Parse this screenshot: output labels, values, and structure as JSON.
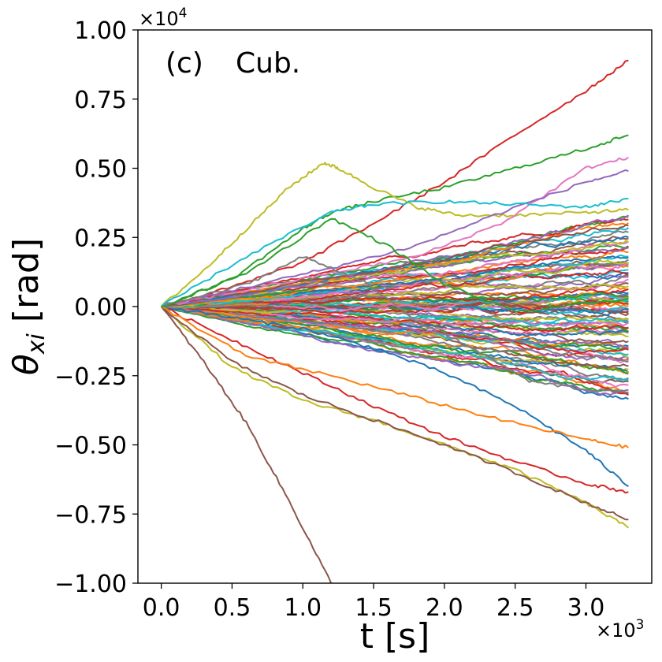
{
  "chart_data": {
    "type": "line",
    "panel_label": "(c)",
    "panel_title": "Cub.",
    "xlabel": "t [s]",
    "ylabel_symbol": "θ",
    "ylabel_subscript": "xi",
    "ylabel_unit": "[rad]",
    "x_scale_prefix": "×10",
    "x_scale_exponent": "3",
    "y_scale_prefix": "×10",
    "y_scale_exponent": "4",
    "xlim": [
      -0.165,
      3.465
    ],
    "ylim": [
      -1.0,
      1.0
    ],
    "x_ticks": [
      0.0,
      0.5,
      1.0,
      1.5,
      2.0,
      2.5,
      3.0
    ],
    "x_tick_labels": [
      "0.0",
      "0.5",
      "1.0",
      "1.5",
      "2.0",
      "2.5",
      "3.0"
    ],
    "y_ticks": [
      1.0,
      0.75,
      0.5,
      0.25,
      0.0,
      -0.25,
      -0.5,
      -0.75,
      -1.0
    ],
    "y_tick_labels": [
      "1.00",
      "0.75",
      "0.50",
      "0.25",
      "0.00",
      "−0.25",
      "−0.50",
      "−0.75",
      "−1.00"
    ],
    "grid": false,
    "notable_series": [
      {
        "name": "red-top",
        "color": "#d62728",
        "points": [
          [
            0,
            0
          ],
          [
            0.5,
            0.07
          ],
          [
            1.0,
            0.16
          ],
          [
            1.5,
            0.3
          ],
          [
            2.0,
            0.45
          ],
          [
            2.5,
            0.62
          ],
          [
            3.0,
            0.78
          ],
          [
            3.3,
            0.89
          ]
        ]
      },
      {
        "name": "green-upper",
        "color": "#2ca02c",
        "points": [
          [
            0,
            0
          ],
          [
            0.5,
            0.1
          ],
          [
            1.0,
            0.28
          ],
          [
            1.2,
            0.34
          ],
          [
            1.5,
            0.38
          ],
          [
            2.0,
            0.43
          ],
          [
            2.5,
            0.5
          ],
          [
            3.0,
            0.57
          ],
          [
            3.3,
            0.62
          ]
        ]
      },
      {
        "name": "olive-peak",
        "color": "#bcbd22",
        "points": [
          [
            0,
            0
          ],
          [
            0.3,
            0.13
          ],
          [
            0.6,
            0.28
          ],
          [
            0.9,
            0.43
          ],
          [
            1.15,
            0.52
          ],
          [
            1.25,
            0.5
          ],
          [
            1.5,
            0.43
          ],
          [
            1.8,
            0.36
          ],
          [
            2.1,
            0.33
          ],
          [
            2.5,
            0.33
          ],
          [
            3.0,
            0.34
          ],
          [
            3.3,
            0.35
          ]
        ]
      },
      {
        "name": "pink-upper",
        "color": "#e377c2",
        "points": [
          [
            0,
            0
          ],
          [
            0.6,
            0.06
          ],
          [
            1.2,
            0.12
          ],
          [
            1.8,
            0.18
          ],
          [
            2.4,
            0.3
          ],
          [
            3.0,
            0.5
          ],
          [
            3.3,
            0.54
          ]
        ]
      },
      {
        "name": "purple-upper",
        "color": "#9467bd",
        "points": [
          [
            0,
            0
          ],
          [
            0.6,
            0.07
          ],
          [
            1.2,
            0.14
          ],
          [
            1.8,
            0.22
          ],
          [
            2.4,
            0.34
          ],
          [
            3.0,
            0.45
          ],
          [
            3.3,
            0.49
          ]
        ]
      },
      {
        "name": "cyan-upper",
        "color": "#17becf",
        "points": [
          [
            0,
            0
          ],
          [
            0.6,
            0.18
          ],
          [
            1.2,
            0.34
          ],
          [
            1.5,
            0.37
          ],
          [
            2.0,
            0.38
          ],
          [
            2.5,
            0.37
          ],
          [
            3.0,
            0.36
          ],
          [
            3.3,
            0.39
          ]
        ]
      },
      {
        "name": "blue-cross",
        "color": "#1f77b4",
        "points": [
          [
            0,
            0
          ],
          [
            0.5,
            -0.04
          ],
          [
            1.0,
            -0.08
          ],
          [
            1.5,
            -0.15
          ],
          [
            2.0,
            -0.24
          ],
          [
            2.5,
            -0.36
          ],
          [
            3.0,
            -0.52
          ],
          [
            3.3,
            -0.65
          ]
        ]
      },
      {
        "name": "olive-lower",
        "color": "#bcbd22",
        "points": [
          [
            0,
            0
          ],
          [
            0.5,
            -0.22
          ],
          [
            1.0,
            -0.34
          ],
          [
            1.5,
            -0.41
          ],
          [
            2.0,
            -0.5
          ],
          [
            2.5,
            -0.59
          ],
          [
            3.0,
            -0.71
          ],
          [
            3.3,
            -0.8
          ]
        ]
      },
      {
        "name": "brown-lower",
        "color": "#8c564b",
        "points": [
          [
            0,
            0
          ],
          [
            0.5,
            -0.2
          ],
          [
            1.0,
            -0.32
          ],
          [
            1.5,
            -0.41
          ],
          [
            2.0,
            -0.5
          ],
          [
            2.5,
            -0.6
          ],
          [
            3.0,
            -0.71
          ],
          [
            3.3,
            -0.77
          ]
        ]
      },
      {
        "name": "red-lower",
        "color": "#d62728",
        "points": [
          [
            0,
            0
          ],
          [
            0.5,
            -0.12
          ],
          [
            1.0,
            -0.24
          ],
          [
            1.5,
            -0.36
          ],
          [
            2.0,
            -0.47
          ],
          [
            2.5,
            -0.56
          ],
          [
            3.0,
            -0.64
          ],
          [
            3.3,
            -0.67
          ]
        ]
      },
      {
        "name": "brown-steep",
        "color": "#8c564b",
        "points": [
          [
            0,
            0
          ],
          [
            0.3,
            -0.2
          ],
          [
            0.6,
            -0.42
          ],
          [
            0.9,
            -0.7
          ],
          [
            1.2,
            -1.0
          ]
        ]
      },
      {
        "name": "orange-lower",
        "color": "#ff7f0e",
        "points": [
          [
            0,
            0
          ],
          [
            0.6,
            -0.18
          ],
          [
            1.2,
            -0.25
          ],
          [
            1.8,
            -0.33
          ],
          [
            2.4,
            -0.41
          ],
          [
            3.0,
            -0.48
          ],
          [
            3.3,
            -0.51
          ]
        ]
      },
      {
        "name": "gray-cross",
        "color": "#7f7f7f",
        "points": [
          [
            0,
            0
          ],
          [
            0.6,
            0.08
          ],
          [
            1.0,
            0.18
          ],
          [
            1.4,
            0.1
          ],
          [
            1.8,
            -0.05
          ],
          [
            2.2,
            -0.15
          ],
          [
            2.6,
            -0.27
          ],
          [
            3.0,
            -0.3
          ],
          [
            3.3,
            -0.31
          ]
        ]
      },
      {
        "name": "green-cross",
        "color": "#2ca02c",
        "points": [
          [
            0,
            0
          ],
          [
            0.6,
            0.12
          ],
          [
            1.2,
            0.32
          ],
          [
            1.6,
            0.22
          ],
          [
            2.0,
            0.08
          ],
          [
            2.5,
            -0.02
          ],
          [
            3.3,
            0.03
          ]
        ]
      }
    ],
    "bundle_series_count": 96,
    "bundle_spread_at_end": 0.34
  }
}
